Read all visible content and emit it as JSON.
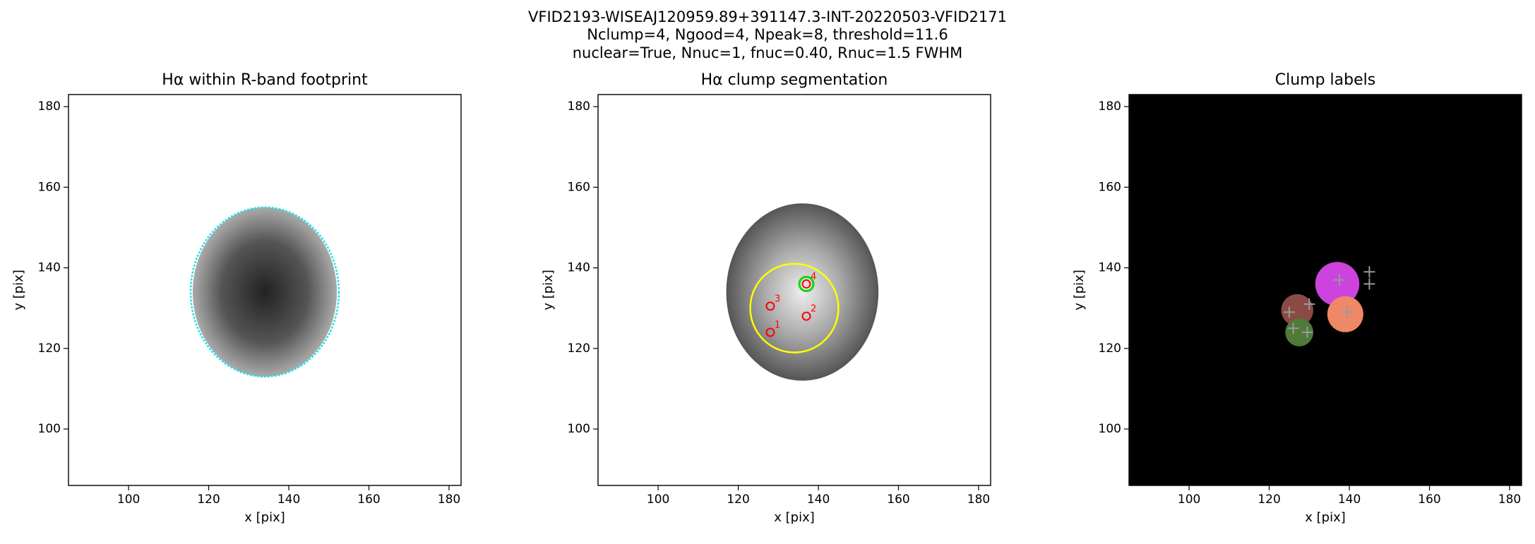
{
  "suptitle": [
    "VFID2193-WISEAJ120959.89+391147.3-INT-20220503-VFID2171",
    "Nclump=4, Ngood=4, Npeak=8, threshold=11.6",
    "nuclear=True, Nnuc=1, fnuc=0.40, Rnuc=1.5 FWHM"
  ],
  "chart_data": [
    {
      "type": "image",
      "title": "Hα within R-band footprint",
      "xlabel": "x [pix]",
      "ylabel": "y [pix]",
      "xlim": [
        85,
        183
      ],
      "ylim": [
        86,
        183
      ],
      "xticks": [
        100,
        120,
        140,
        160,
        180
      ],
      "yticks": [
        100,
        120,
        140,
        160,
        180
      ],
      "cmap": "gray_r",
      "source": {
        "x": 134,
        "y": 134,
        "rx": 18,
        "ry": 21
      },
      "contour": {
        "x": 134,
        "y": 134,
        "rx": 18.5,
        "ry": 21,
        "color": "#22e0e8"
      }
    },
    {
      "type": "image",
      "title": "Hα clump segmentation",
      "xlabel": "x [pix]",
      "ylabel": "y [pix]",
      "xlim": [
        85,
        183
      ],
      "ylim": [
        86,
        183
      ],
      "xticks": [
        100,
        120,
        140,
        160,
        180
      ],
      "yticks": [
        100,
        120,
        140,
        160,
        180
      ],
      "cmap": "gray",
      "source": {
        "x": 136,
        "y": 134,
        "rx": 19,
        "ry": 22
      },
      "contour": {
        "x": 134,
        "y": 130,
        "rx": 11,
        "ry": 11,
        "color": "#ffff00"
      },
      "points": {
        "x": [
          128,
          137,
          128,
          137
        ],
        "y": [
          124,
          128,
          130.5,
          136
        ],
        "labels": [
          "1",
          "2",
          "3",
          "4"
        ],
        "color": "#ff0000"
      },
      "nucleus": {
        "x": 137,
        "y": 136,
        "color": "#00dd00"
      }
    },
    {
      "type": "labels",
      "title": "Clump labels",
      "xlabel": "x [pix]",
      "ylabel": "y [pix]",
      "xlim": [
        85,
        183
      ],
      "ylim": [
        86,
        183
      ],
      "xticks": [
        100,
        120,
        140,
        160,
        180
      ],
      "yticks": [
        100,
        120,
        140,
        160,
        180
      ],
      "background": "#000000",
      "regions": [
        {
          "x": 137,
          "y": 136,
          "r": 5.5,
          "color": "#cc44dd"
        },
        {
          "x": 127,
          "y": 129.5,
          "r": 4,
          "color": "#8b4a44"
        },
        {
          "x": 139,
          "y": 128.5,
          "r": 4.5,
          "color": "#ee8866"
        },
        {
          "x": 127.5,
          "y": 124,
          "r": 3.5,
          "color": "#4e7a3a"
        }
      ],
      "peaks": {
        "x": [
          137.5,
          145,
          145,
          125,
          130,
          139.5,
          126,
          129.5
        ],
        "y": [
          137,
          139,
          136,
          129,
          131,
          129,
          125,
          124
        ],
        "color": "#999999"
      }
    }
  ]
}
